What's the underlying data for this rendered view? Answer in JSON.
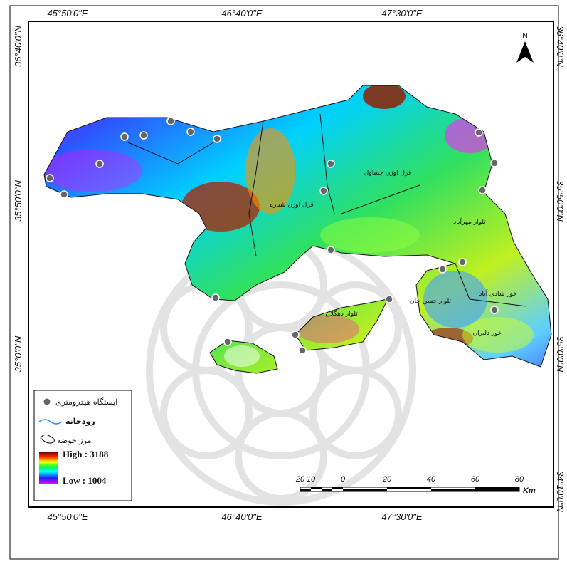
{
  "frame": {
    "top_labels": [
      "45°50'0\"E",
      "46°40'0\"E",
      "47°30'0\"E"
    ],
    "bottom_labels": [
      "45°50'0\"E",
      "46°40'0\"E",
      "47°30'0\"E"
    ],
    "left_labels": [
      "36°40'0\"N",
      "35°50'0\"N",
      "35°0'0\"N"
    ],
    "right_labels": [
      "36°40'0\"N",
      "35°50'0\"N",
      "35°0'0\"N",
      "34°10'0\"N"
    ]
  },
  "north_arrow": "N",
  "places": [
    "خور دلبران",
    "خور شادی آباد",
    "تلوار حسن خان",
    "تلوار مهرآباد",
    "قزل اوزن چساول",
    "قزل اوزن شباره",
    "تلوار دهگلان"
  ],
  "legend": {
    "station": "ایستگاه هیدرومتری",
    "river": "رودخانه",
    "boundary": "مرز حوضه",
    "high": "High : 3188",
    "low": "Low : 1004"
  },
  "scale": {
    "labels": [
      20,
      10,
      0,
      20,
      40,
      60,
      80
    ],
    "unit": "Km"
  }
}
